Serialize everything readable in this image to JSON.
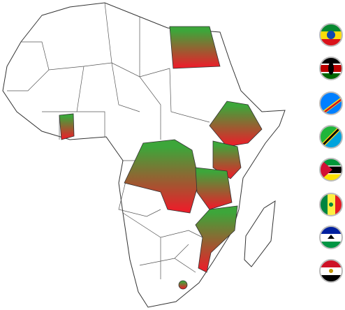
{
  "map": {
    "highlight_colors": [
      "#3da63a",
      "#e8202a"
    ]
  }
}
